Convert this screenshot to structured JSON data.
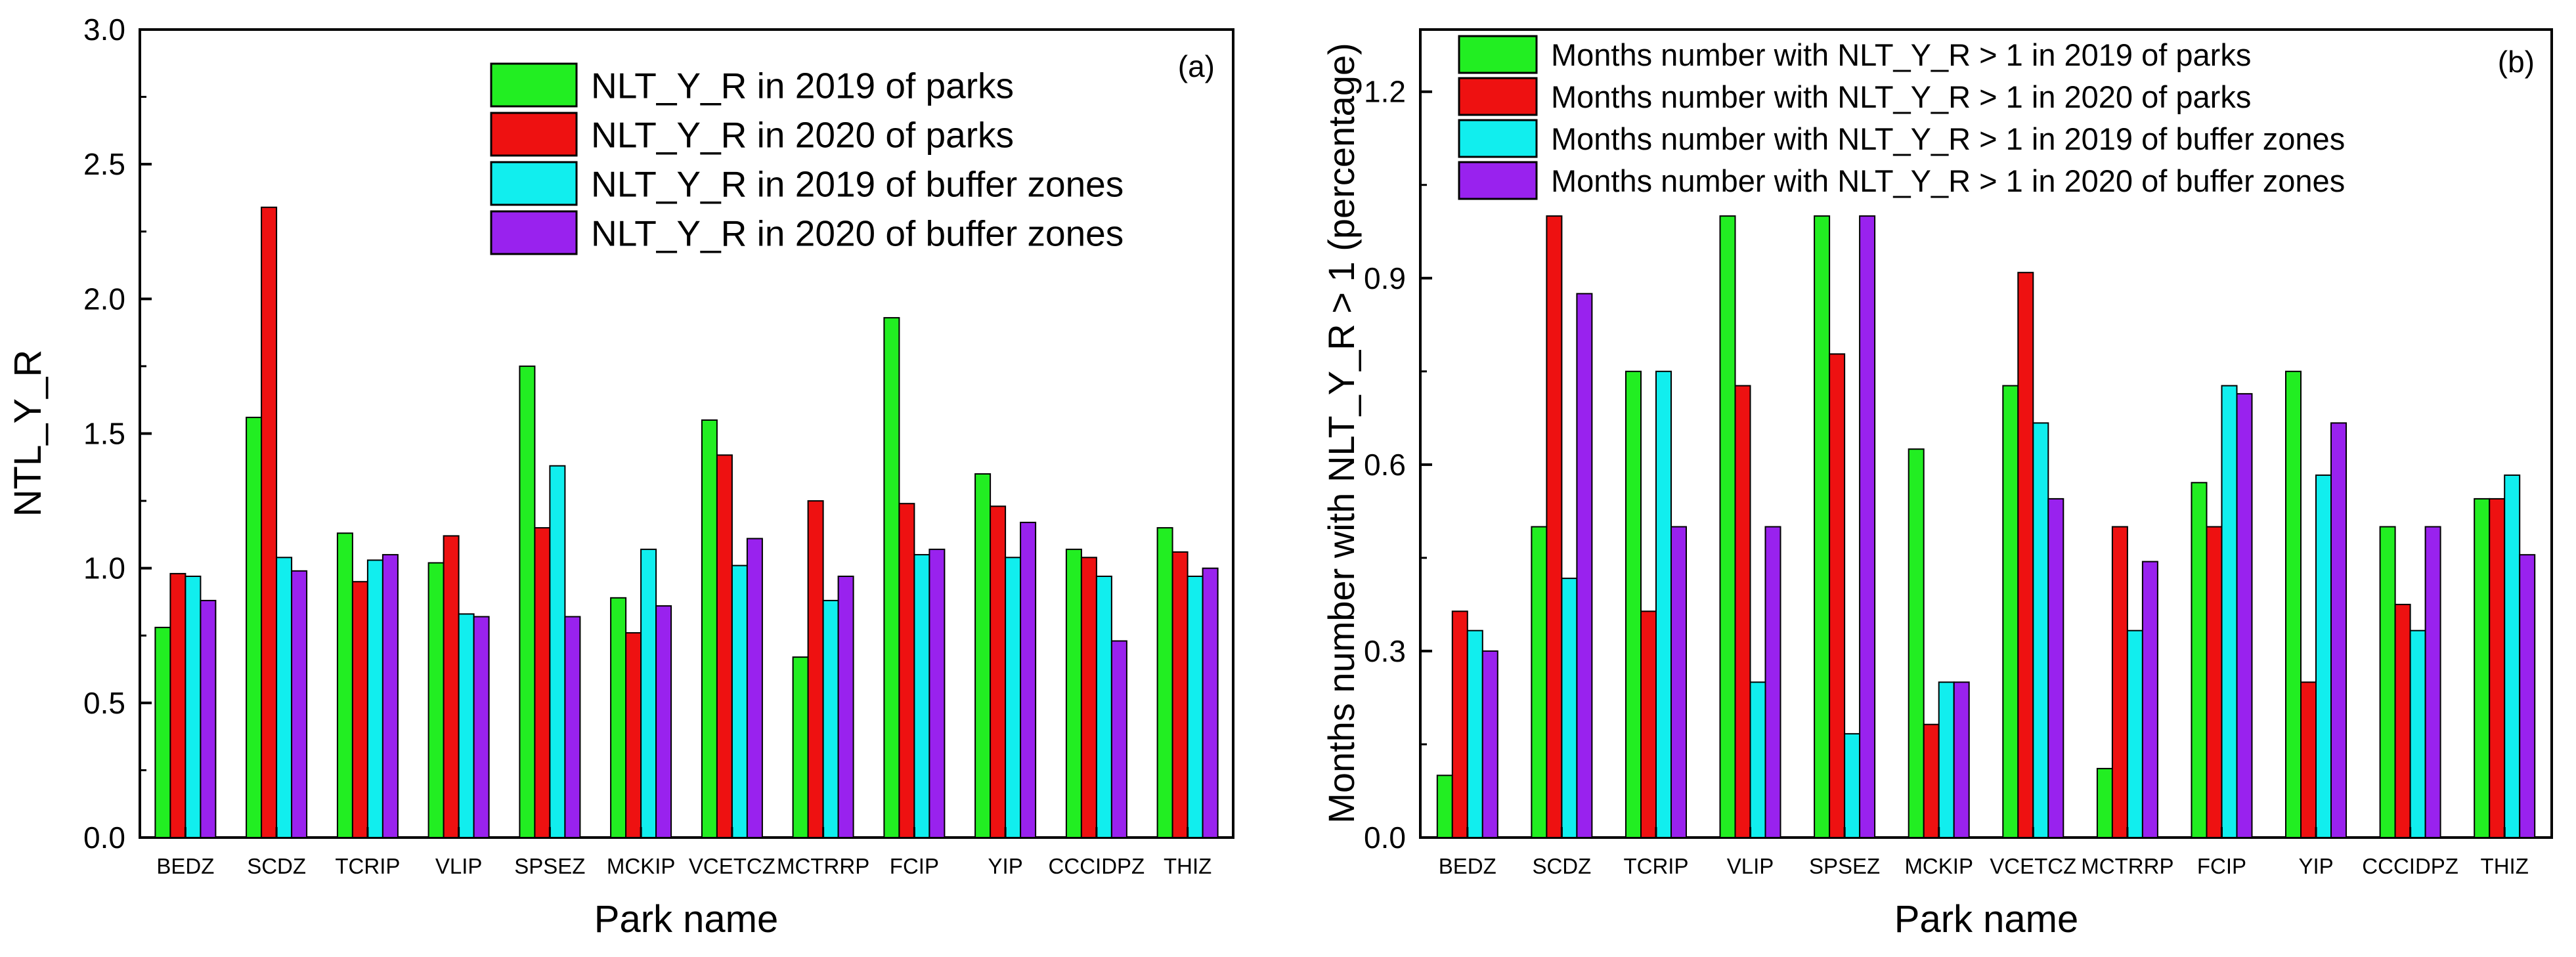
{
  "chart_data": [
    {
      "type": "bar",
      "panel_label": "(a)",
      "xlabel": "Park name",
      "ylabel": "NTL_Y_R",
      "ylim": [
        0,
        3.0
      ],
      "yticks": [
        0.0,
        0.5,
        1.0,
        1.5,
        2.0,
        2.5,
        3.0
      ],
      "ytick_labels": [
        "0.0",
        "0.5",
        "1.0",
        "1.5",
        "2.0",
        "2.5",
        "3.0"
      ],
      "grid": false,
      "legend_position": "top-right",
      "categories": [
        "BEDZ",
        "SCDZ",
        "TCRIP",
        "VLIP",
        "SPSEZ",
        "MCKIP",
        "VCETCZ",
        "MCTRRP",
        "FCIP",
        "YIP",
        "CCCIDPZ",
        "THIZ"
      ],
      "series": [
        {
          "name": "NLT_Y_R in 2019 of parks",
          "color": "#22ee22",
          "values": [
            0.78,
            1.56,
            1.13,
            1.02,
            1.75,
            0.89,
            1.55,
            0.67,
            1.93,
            1.35,
            1.07,
            1.15
          ]
        },
        {
          "name": "NLT_Y_R in 2020 of parks",
          "color": "#ee1111",
          "values": [
            0.98,
            2.34,
            0.95,
            1.12,
            1.15,
            0.76,
            1.42,
            1.25,
            1.24,
            1.23,
            1.04,
            1.06
          ]
        },
        {
          "name": "NLT_Y_R in 2019 of buffer zones",
          "color": "#11eeee",
          "values": [
            0.97,
            1.04,
            1.03,
            0.83,
            1.38,
            1.07,
            1.01,
            0.88,
            1.05,
            1.04,
            0.97,
            0.97
          ]
        },
        {
          "name": "NLT_Y_R in 2020 of buffer zones",
          "color": "#9922ee",
          "values": [
            0.88,
            0.99,
            1.05,
            0.82,
            0.82,
            0.86,
            1.11,
            0.97,
            1.07,
            1.17,
            0.73,
            1.0
          ]
        }
      ]
    },
    {
      "type": "bar",
      "panel_label": "(b)",
      "xlabel": "Park name",
      "ylabel": "Months number with NLT_Y_R > 1 (percentage)",
      "ylim": [
        0,
        1.3
      ],
      "yticks": [
        0.0,
        0.3,
        0.6,
        0.9,
        1.2
      ],
      "ytick_labels": [
        "0.0",
        "0.3",
        "0.6",
        "0.9",
        "1.2"
      ],
      "grid": false,
      "legend_position": "top-left",
      "categories": [
        "BEDZ",
        "SCDZ",
        "TCRIP",
        "VLIP",
        "SPSEZ",
        "MCKIP",
        "VCETCZ",
        "MCTRRP",
        "FCIP",
        "YIP",
        "CCCIDPZ",
        "THIZ"
      ],
      "series": [
        {
          "name": "Months number with NLT_Y_R > 1 in 2019 of parks",
          "color": "#22ee22",
          "values": [
            0.1,
            0.5,
            0.75,
            1.0,
            1.0,
            0.625,
            0.727,
            0.111,
            0.571,
            0.75,
            0.5,
            0.545
          ]
        },
        {
          "name": "Months number with NLT_Y_R > 1 in 2020 of parks",
          "color": "#ee1111",
          "values": [
            0.364,
            1.0,
            0.364,
            0.727,
            0.778,
            0.182,
            0.909,
            0.5,
            0.5,
            0.25,
            0.375,
            0.545
          ]
        },
        {
          "name": "Months number with NLT_Y_R > 1 in 2019 of buffer zones",
          "color": "#11eeee",
          "values": [
            0.333,
            0.417,
            0.75,
            0.25,
            0.167,
            0.25,
            0.667,
            0.333,
            0.727,
            0.583,
            0.333,
            0.583
          ]
        },
        {
          "name": "Months number with NLT_Y_R > 1 in 2020 of buffer zones",
          "color": "#9922ee",
          "values": [
            0.3,
            0.875,
            0.5,
            0.5,
            1.0,
            0.25,
            0.545,
            0.444,
            0.714,
            0.667,
            0.5,
            0.455
          ]
        }
      ]
    }
  ]
}
